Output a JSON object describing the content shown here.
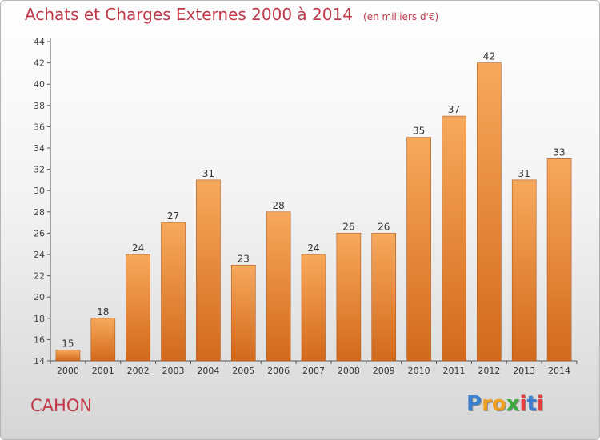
{
  "header": {
    "title": "Achats et Charges Externes 2000 à 2014",
    "unit": "(en milliers d'€)"
  },
  "footer": {
    "commune": "CAHON",
    "logo_letters": [
      {
        "ch": "P",
        "color": "#3a7fd0"
      },
      {
        "ch": "r",
        "color": "#f0a020"
      },
      {
        "ch": "o",
        "color": "#f0a020"
      },
      {
        "ch": "x",
        "color": "#3aaa3a"
      },
      {
        "ch": "i",
        "color": "#e04040"
      },
      {
        "ch": "t",
        "color": "#3a7fd0"
      },
      {
        "ch": "i",
        "color": "#e04040"
      }
    ]
  },
  "colors": {
    "title": "#c0394a",
    "bar_top": "#f7a95c",
    "bar_bottom": "#d2691c",
    "bar_stroke": "#b0581a"
  },
  "chart_data": {
    "type": "bar",
    "categories": [
      "2000",
      "2001",
      "2002",
      "2003",
      "2004",
      "2005",
      "2006",
      "2007",
      "2008",
      "2009",
      "2010",
      "2011",
      "2012",
      "2013",
      "2014"
    ],
    "values": [
      15,
      18,
      24,
      27,
      31,
      23,
      28,
      24,
      26,
      26,
      35,
      37,
      42,
      31,
      33
    ],
    "value_labels": [
      "15",
      "18",
      "24",
      "27",
      "31",
      "23",
      "28",
      "24",
      "26",
      "26",
      "35",
      "37",
      "42",
      "31",
      "33"
    ],
    "y_ticks": [
      "14",
      "16",
      "18",
      "20",
      "22",
      "24",
      "26",
      "28",
      "30",
      "32",
      "34",
      "36",
      "38",
      "40",
      "42",
      "44"
    ],
    "ylim": [
      14,
      44
    ],
    "title": "Achats et Charges Externes 2000 à 2014",
    "xlabel": "",
    "ylabel": "",
    "grid": false,
    "legend": "none"
  }
}
